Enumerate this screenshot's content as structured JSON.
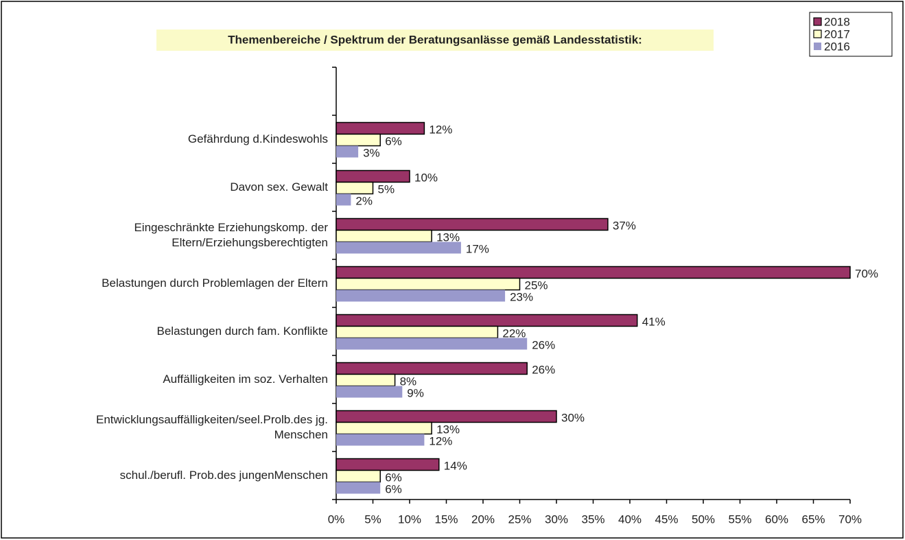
{
  "chart_data": {
    "type": "hbar",
    "title": "Themenbereiche / Spektrum der Beratungsanlässe gemäß Landesstatistik:",
    "categories": [
      null,
      "Gefährdung d.Kindeswohls",
      "Davon sex. Gewalt",
      "Eingeschränkte Erziehungskomp. der Eltern/Erziehungsberechtigten",
      "Belastungen durch Problemlagen der Eltern",
      "Belastungen durch fam. Konflikte",
      "Auffälligkeiten im soz. Verhalten",
      "Entwicklungsauffälligkeiten/seel.Prolb.des jg. Menschen",
      "schul./berufl. Prob.des jungenMenschen"
    ],
    "series": [
      {
        "name": "2018",
        "color": "#993366",
        "values": [
          null,
          12,
          10,
          37,
          70,
          41,
          26,
          30,
          14
        ],
        "value_labels": [
          null,
          "12%",
          "10%",
          "37%",
          "70%",
          "41%",
          "26%",
          "30%",
          "14%"
        ]
      },
      {
        "name": "2017",
        "color": "#ffffcc",
        "values": [
          null,
          6,
          5,
          13,
          25,
          22,
          8,
          13,
          6
        ],
        "value_labels": [
          null,
          "6%",
          "5%",
          "13%",
          "25%",
          "22%",
          "8%",
          "13%",
          "6%"
        ]
      },
      {
        "name": "2016",
        "color": "#9999cc",
        "values": [
          null,
          3,
          2,
          17,
          23,
          26,
          9,
          12,
          6
        ],
        "value_labels": [
          null,
          "3%",
          "2%",
          "17%",
          "23%",
          "26%",
          "9%",
          "12%",
          "6%"
        ]
      }
    ],
    "xlim": [
      0,
      70
    ],
    "xticks": [
      {
        "value": 0,
        "label": "0%"
      },
      {
        "value": 5,
        "label": "5%"
      },
      {
        "value": 10,
        "label": "10%"
      },
      {
        "value": 15,
        "label": "15%"
      },
      {
        "value": 20,
        "label": "20%"
      },
      {
        "value": 25,
        "label": "25%"
      },
      {
        "value": 30,
        "label": "30%"
      },
      {
        "value": 35,
        "label": "35%"
      },
      {
        "value": 40,
        "label": "40%"
      },
      {
        "value": 45,
        "label": "45%"
      },
      {
        "value": 50,
        "label": "50%"
      },
      {
        "value": 55,
        "label": "55%"
      },
      {
        "value": 60,
        "label": "60%"
      },
      {
        "value": 65,
        "label": "65%"
      },
      {
        "value": 70,
        "label": "70%"
      }
    ],
    "legend": "top-right"
  }
}
